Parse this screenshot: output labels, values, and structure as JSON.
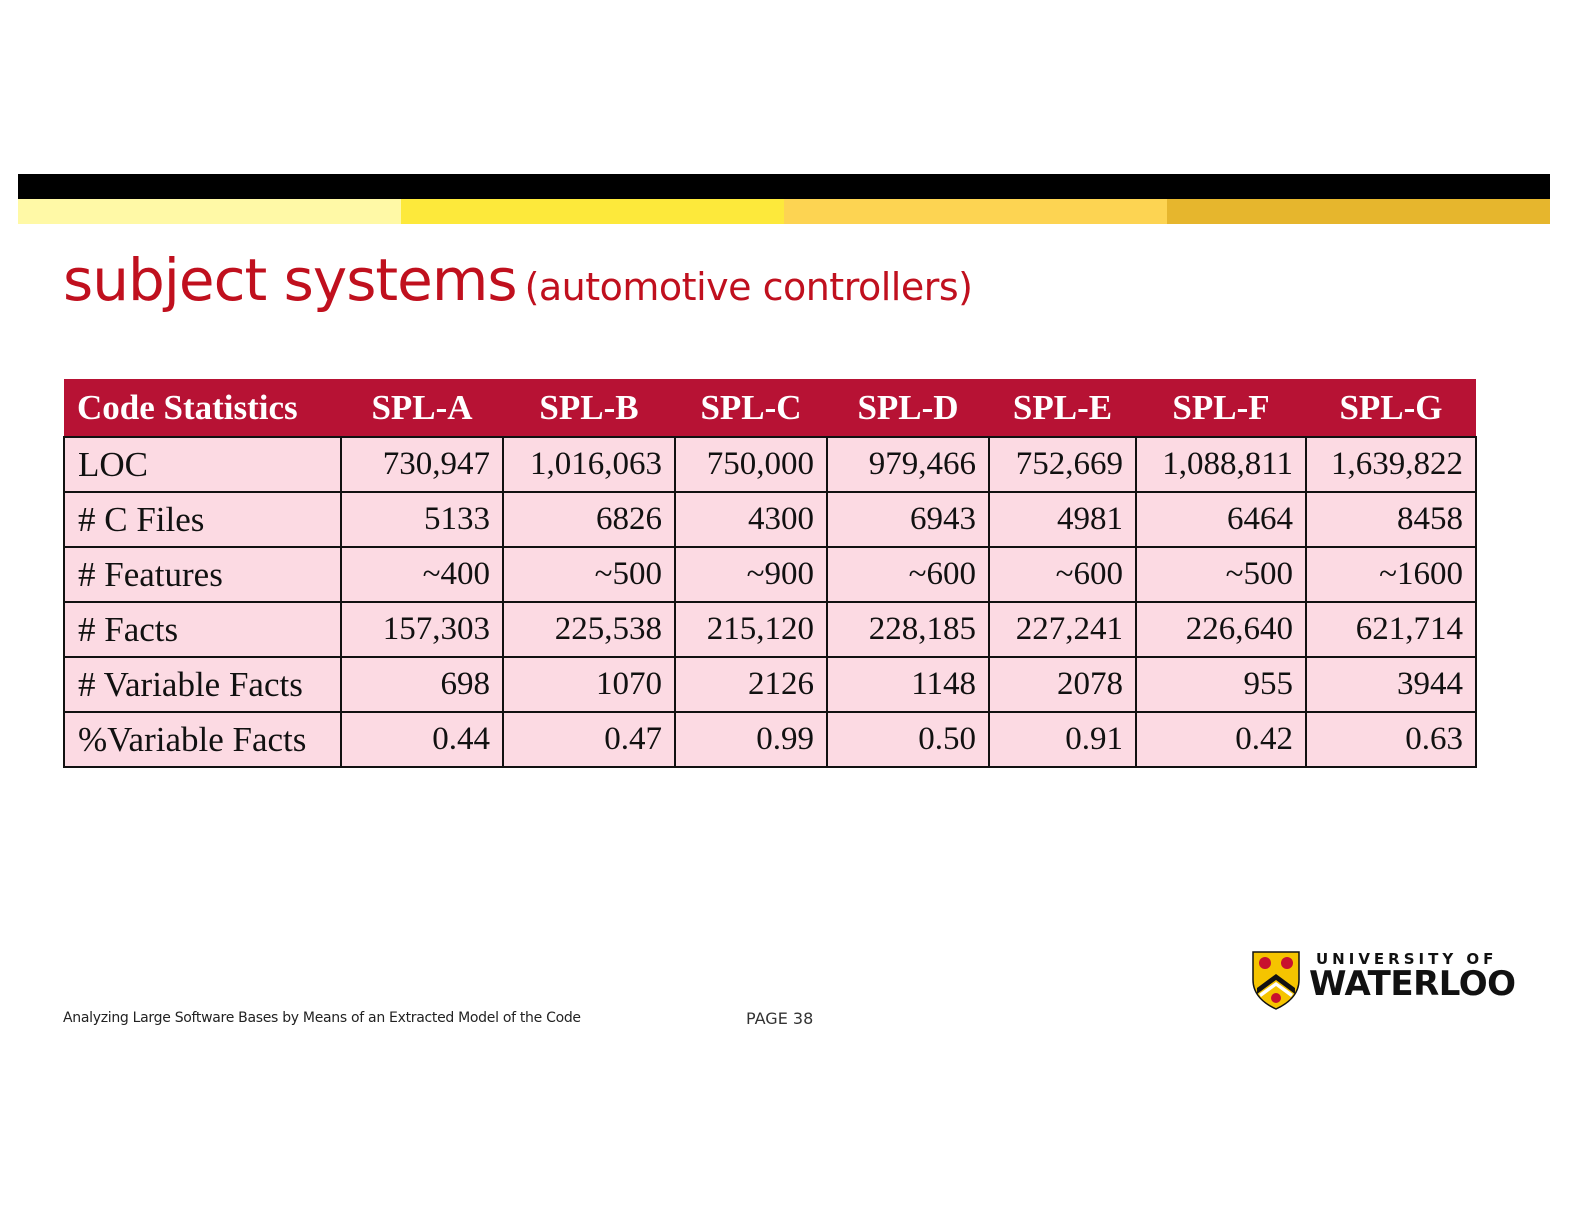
{
  "slide": {
    "title_main": "subject systems",
    "title_sub": "(automotive controllers)",
    "band_colors": [
      "#fff9a6",
      "#fde93b",
      "#fdd452",
      "#e6b62d"
    ],
    "footer_text": "Analyzing Large Software Bases by Means of an Extracted Model of the Code",
    "page_label": "PAGE  38"
  },
  "table": {
    "headers": [
      "Code Statistics",
      "SPL-A",
      "SPL-B",
      "SPL-C",
      "SPL-D",
      "SPL-E",
      "SPL-F",
      "SPL-G"
    ],
    "rows": [
      [
        "LOC",
        "730,947",
        "1,016,063",
        "750,000",
        "979,466",
        "752,669",
        "1,088,811",
        "1,639,822"
      ],
      [
        "# C Files",
        "5133",
        "6826",
        "4300",
        "6943",
        "4981",
        "6464",
        "8458"
      ],
      [
        "# Features",
        "~400",
        "~500",
        "~900",
        "~600",
        "~600",
        "~500",
        "~1600"
      ],
      [
        "# Facts",
        "157,303",
        "225,538",
        "215,120",
        "228,185",
        "227,241",
        "226,640",
        "621,714"
      ],
      [
        "# Variable Facts",
        "698",
        "1070",
        "2126",
        "1148",
        "2078",
        "955",
        "3944"
      ],
      [
        "%Variable Facts",
        "0.44",
        "0.47",
        "0.99",
        "0.50",
        "0.91",
        "0.42",
        "0.63"
      ]
    ]
  },
  "logo": {
    "line1": "UNIVERSITY OF",
    "line2": "WATERLOO",
    "icon": "waterloo-shield-icon"
  }
}
